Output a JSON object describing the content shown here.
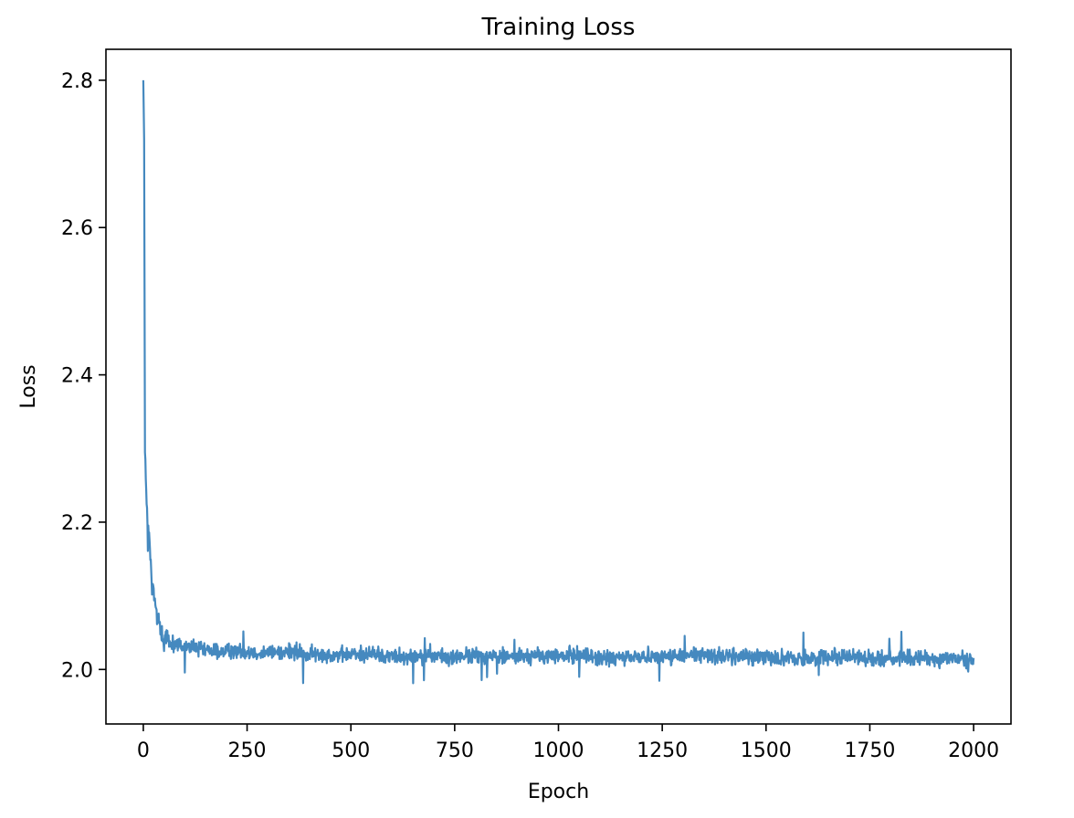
{
  "chart_data": {
    "type": "line",
    "title": "Training Loss",
    "xlabel": "Epoch",
    "ylabel": "Loss",
    "xlim": [
      -90,
      2090
    ],
    "ylim": [
      1.926,
      2.842
    ],
    "xticks": [
      0,
      250,
      500,
      750,
      1000,
      1250,
      1500,
      1750,
      2000
    ],
    "xtick_labels": [
      "0",
      "250",
      "500",
      "750",
      "1000",
      "1250",
      "1500",
      "1750",
      "2000"
    ],
    "yticks": [
      2.0,
      2.2,
      2.4,
      2.6,
      2.8
    ],
    "ytick_labels": [
      "2.0",
      "2.2",
      "2.4",
      "2.6",
      "2.8"
    ],
    "grid": false,
    "legend": "none",
    "line_color": "#4589bf",
    "series": [
      {
        "x": [
          0,
          2,
          4,
          6,
          8,
          10,
          12,
          14,
          16,
          18,
          20,
          22,
          25,
          28,
          31,
          35,
          40,
          45,
          50,
          60,
          70,
          80,
          100,
          120,
          150,
          200,
          250,
          300,
          340,
          400,
          450,
          500,
          540,
          600,
          650,
          700,
          750,
          760,
          800,
          850,
          900,
          950,
          1000,
          1070,
          1100,
          1150,
          1200,
          1250,
          1300,
          1350,
          1400,
          1450,
          1500,
          1550,
          1600,
          1650,
          1700,
          1750,
          1800,
          1850,
          1900,
          1950,
          2000
        ],
        "values": [
          2.8,
          2.72,
          2.31,
          2.26,
          2.22,
          2.2,
          2.19,
          2.18,
          2.16,
          2.14,
          2.12,
          2.11,
          2.1,
          2.09,
          2.08,
          2.07,
          2.06,
          2.05,
          2.04,
          2.04,
          2.035,
          2.035,
          2.03,
          2.03,
          2.025,
          2.025,
          2.025,
          2.022,
          2.025,
          2.02,
          2.02,
          2.02,
          2.022,
          2.018,
          2.018,
          2.018,
          2.015,
          2.018,
          2.018,
          2.018,
          2.018,
          2.018,
          2.018,
          2.02,
          2.015,
          2.015,
          2.018,
          2.018,
          2.018,
          2.02,
          2.018,
          2.018,
          2.018,
          2.015,
          2.015,
          2.018,
          2.018,
          2.015,
          2.015,
          2.015,
          2.015,
          2.015,
          2.012
        ]
      }
    ]
  }
}
